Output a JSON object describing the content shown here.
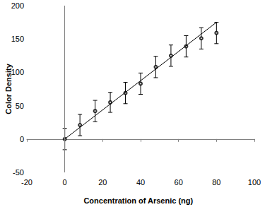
{
  "chart_data": {
    "type": "scatter",
    "x_label": "Concentration of Arsenic (ng)",
    "y_label": "Color Density",
    "x": [
      0,
      8,
      16,
      24,
      32,
      40,
      48,
      56,
      64,
      72,
      80
    ],
    "values": [
      0,
      21,
      42,
      55,
      69,
      83,
      108,
      125,
      139,
      151,
      159
    ],
    "error": [
      16,
      16,
      16,
      15,
      16,
      16,
      16,
      16,
      16,
      16,
      16
    ],
    "trendline": {
      "x": [
        0,
        80
      ],
      "values": [
        0,
        175
      ]
    },
    "color": "#000000",
    "marker": "circle",
    "xlim": [
      -20,
      100
    ],
    "xticks": [
      -20,
      0,
      20,
      40,
      60,
      80,
      100
    ],
    "ylim": [
      -50,
      200
    ],
    "yticks": [
      -50,
      0,
      50,
      100,
      150,
      200
    ],
    "grid": false
  }
}
